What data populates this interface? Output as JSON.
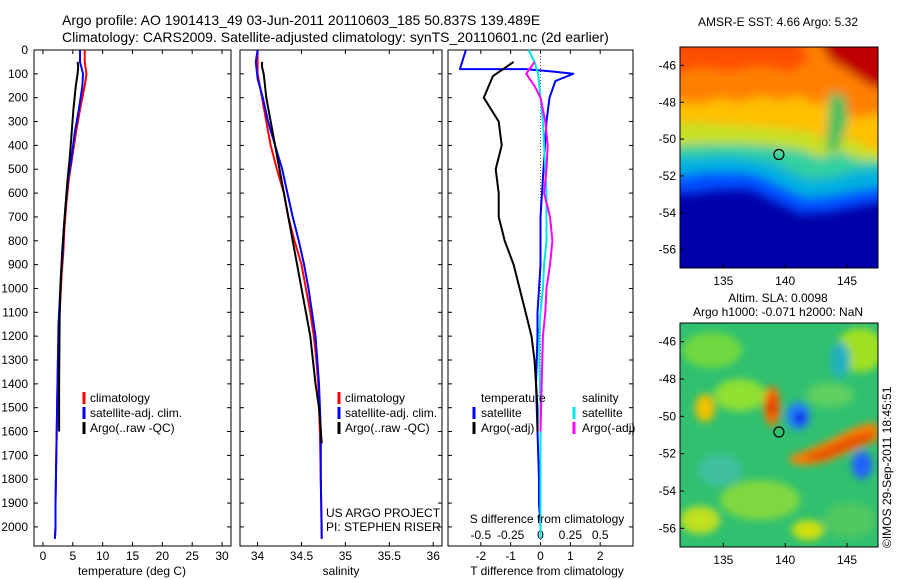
{
  "header": {
    "line1": "Argo profile: AO 1901413_49 03-Jun-2011 20110603_185 50.837S 139.489E",
    "line2": "Climatology: CARS2009. Satellite-adjusted climatology: synTS_20110601.nc (2d earlier)"
  },
  "colors": {
    "climatology": "#ff0000",
    "satellite": "#0000ff",
    "argo": "#000000",
    "sat_salinity_diff": "#00e5e5",
    "argo_salinity_diff": "#ff00ff"
  },
  "depth_axis": {
    "ticks": [
      0,
      100,
      200,
      300,
      400,
      500,
      600,
      700,
      800,
      900,
      1000,
      1100,
      1200,
      1300,
      1400,
      1500,
      1600,
      1700,
      1800,
      1900,
      2000
    ],
    "range": [
      0,
      2080
    ],
    "inverted": true
  },
  "chart_data": [
    {
      "id": "temperature",
      "type": "line",
      "xlabel": "temperature (deg C)",
      "ylabel": "",
      "xlim": [
        -1.5,
        31.5
      ],
      "ylim": [
        2080,
        0
      ],
      "xticks": [
        0,
        5,
        10,
        15,
        20,
        25,
        30
      ],
      "xtick_labels": [
        "0",
        "5",
        "10",
        "15",
        "20",
        "25",
        "30"
      ],
      "legend_position": "lower-middle",
      "series": [
        {
          "name": "climatology",
          "color": "#ff0000",
          "x": [
            7.0,
            7.0,
            7.3,
            7.0,
            6.2,
            5.5,
            4.9,
            4.3,
            3.9,
            3.6,
            3.4,
            3.1,
            2.9,
            2.7,
            2.5,
            2.4,
            2.3,
            2.2,
            2.1,
            2.1,
            2.0
          ],
          "y": [
            0,
            50,
            100,
            150,
            250,
            350,
            450,
            550,
            650,
            750,
            850,
            950,
            1050,
            1150,
            1300,
            1450,
            1600,
            1750,
            1900,
            2000,
            2050
          ]
        },
        {
          "name": "satellite-adj. clim.",
          "color": "#0000ff",
          "x": [
            6.2,
            6.2,
            6.7,
            6.6,
            6.0,
            5.3,
            4.8,
            4.2,
            3.8,
            3.5,
            3.3,
            3.0,
            2.8,
            2.6,
            2.5,
            2.4,
            2.3,
            2.2,
            2.1,
            2.1,
            2.0
          ],
          "y": [
            0,
            50,
            100,
            150,
            250,
            350,
            450,
            550,
            650,
            750,
            850,
            950,
            1050,
            1150,
            1300,
            1450,
            1600,
            1750,
            1900,
            2000,
            2050
          ]
        },
        {
          "name": "Argo(..raw -QC)",
          "color": "#000000",
          "x": [
            5.8,
            5.9,
            5.8,
            5.5,
            5.1,
            4.8,
            4.5,
            4.1,
            3.8,
            3.5,
            3.2,
            3.0,
            2.8,
            2.7,
            2.7
          ],
          "y": [
            50,
            70,
            100,
            150,
            250,
            350,
            450,
            550,
            650,
            750,
            850,
            950,
            1100,
            1400,
            1600
          ]
        }
      ]
    },
    {
      "id": "salinity",
      "type": "line",
      "xlabel": "salinity",
      "ylabel": "",
      "xlim": [
        33.8,
        36.1
      ],
      "ylim": [
        2080,
        0
      ],
      "xticks": [
        34,
        34.5,
        35,
        35.5,
        36
      ],
      "xtick_labels": [
        "34",
        "34.5",
        "35",
        "35.5",
        "36"
      ],
      "legend_position": "lower-middle",
      "annotation": [
        "US ARGO PROJECT",
        "PI: STEPHEN RISER"
      ],
      "series": [
        {
          "name": "climatology",
          "color": "#ff0000",
          "x": [
            34.0,
            34.0,
            34.0,
            34.05,
            34.1,
            34.15,
            34.22,
            34.3,
            34.35,
            34.42,
            34.5,
            34.55,
            34.6,
            34.64,
            34.67,
            34.69,
            34.7,
            34.71,
            34.72,
            34.73,
            34.73
          ],
          "y": [
            0,
            50,
            100,
            200,
            300,
            400,
            500,
            600,
            700,
            800,
            900,
            1000,
            1100,
            1200,
            1300,
            1400,
            1500,
            1600,
            1800,
            2000,
            2050
          ]
        },
        {
          "name": "satellite-adj. clim.",
          "color": "#0000ff",
          "x": [
            34.0,
            33.98,
            34.0,
            34.06,
            34.12,
            34.2,
            34.28,
            34.34,
            34.4,
            34.47,
            34.53,
            34.58,
            34.62,
            34.66,
            34.68,
            34.7,
            34.71,
            34.72,
            34.72,
            34.73
          ],
          "y": [
            0,
            50,
            120,
            200,
            300,
            400,
            500,
            600,
            700,
            800,
            900,
            1000,
            1100,
            1200,
            1300,
            1400,
            1500,
            1600,
            1800,
            2050
          ]
        },
        {
          "name": "Argo(..raw -QC)",
          "color": "#000000",
          "x": [
            34.05,
            34.05,
            34.07,
            34.1,
            34.15,
            34.2,
            34.25,
            34.3,
            34.35,
            34.4,
            34.45,
            34.5,
            34.55,
            34.6,
            34.63,
            34.66,
            34.7,
            34.72,
            34.73
          ],
          "y": [
            50,
            70,
            100,
            200,
            300,
            400,
            500,
            600,
            700,
            800,
            900,
            1000,
            1100,
            1200,
            1300,
            1400,
            1500,
            1600,
            1650
          ]
        }
      ]
    },
    {
      "id": "differences",
      "type": "line",
      "xlabel": "T difference from climatology",
      "xlabel_top": "S difference from climatology",
      "ylabel": "",
      "xlim": [
        -3.1,
        3.1
      ],
      "ylim": [
        2080,
        0
      ],
      "xticks": [
        -2,
        -1,
        0,
        1,
        2
      ],
      "xtick_labels": [
        "-2",
        "-1",
        "0",
        "1",
        "2"
      ],
      "s_ticks": [
        -0.5,
        -0.25,
        0,
        0.25,
        0.5
      ],
      "s_tick_labels": [
        "-0.5",
        "-0.25",
        "0",
        "0.25",
        "0.5"
      ],
      "zero_line": true,
      "legend_titles": [
        "temperature",
        "salinity"
      ],
      "legend_position": "lower-middle",
      "series": [
        {
          "name": "satellite",
          "group": "temperature",
          "color": "#0000ff",
          "x": [
            -2.5,
            -2.7,
            -0.5,
            0.4,
            1.1,
            0.5,
            0.3,
            0.2,
            0.1,
            0.0,
            0.0,
            -0.05,
            -0.1,
            -0.1,
            -0.15,
            -0.1,
            -0.05,
            -0.05,
            0.0,
            0.0
          ],
          "y": [
            0,
            80,
            80,
            90,
            100,
            130,
            200,
            300,
            500,
            700,
            900,
            1000,
            1100,
            1200,
            1400,
            1600,
            1800,
            1900,
            2000,
            2050
          ]
        },
        {
          "name": "Argo(-adj)",
          "group": "temperature",
          "color": "#000000",
          "x": [
            -0.9,
            -1.6,
            -1.9,
            -1.4,
            -1.3,
            -1.5,
            -1.4,
            -1.4,
            -1.2,
            -0.9,
            -0.7,
            -0.5,
            -0.3,
            -0.2,
            -0.1,
            -0.1
          ],
          "y": [
            50,
            110,
            200,
            300,
            400,
            500,
            600,
            700,
            800,
            900,
            1000,
            1100,
            1200,
            1300,
            1500,
            1600
          ]
        },
        {
          "name": "satellite",
          "group": "salinity",
          "color": "#00e5e5",
          "x": [
            -0.1,
            -0.05,
            -0.02,
            0.0,
            0.02,
            0.04,
            0.05,
            0.05,
            0.05,
            0.03,
            0.02,
            0.0,
            -0.01,
            -0.01,
            0.0,
            0.0,
            0.0,
            0.0
          ],
          "y": [
            0,
            50,
            100,
            200,
            300,
            500,
            600,
            700,
            800,
            900,
            1000,
            1100,
            1200,
            1300,
            1500,
            1800,
            2000,
            2050
          ]
        },
        {
          "name": "Argo(-adj)",
          "group": "salinity",
          "color": "#ff00ff",
          "x": [
            -0.05,
            -0.12,
            -0.05,
            0.0,
            0.04,
            0.06,
            0.05,
            0.03,
            0.08,
            0.1,
            0.08,
            0.05,
            0.04,
            0.02,
            0.01,
            0.0
          ],
          "y": [
            50,
            100,
            150,
            200,
            300,
            400,
            500,
            600,
            700,
            800,
            900,
            1000,
            1100,
            1200,
            1400,
            1600
          ]
        }
      ]
    },
    {
      "id": "sst_map",
      "type": "heatmap",
      "title": "AMSR-E SST: 4.66  Argo: 5.32",
      "xlim": [
        131.5,
        147.5
      ],
      "ylim": [
        -57,
        -45
      ],
      "xticks": [
        135,
        140,
        145
      ],
      "yticks": [
        -46,
        -48,
        -50,
        -52,
        -54,
        -56
      ],
      "xtick_labels": [
        "135",
        "140",
        "145"
      ],
      "ytick_labels": [
        "-46",
        "-48",
        "-50",
        "-52",
        "-54",
        "-56"
      ],
      "marker": {
        "lon": 139.489,
        "lat": -50.837
      },
      "colormap": "jet"
    },
    {
      "id": "sla_map",
      "type": "heatmap",
      "title": "Altim. SLA: 0.0098",
      "subtitle": "Argo h1000: -0.071  h2000: NaN",
      "xlim": [
        131.5,
        147.5
      ],
      "ylim": [
        -57,
        -45
      ],
      "xticks": [
        135,
        140,
        145
      ],
      "yticks": [
        -46,
        -48,
        -50,
        -52,
        -54,
        -56
      ],
      "xtick_labels": [
        "135",
        "140",
        "145"
      ],
      "ytick_labels": [
        "-46",
        "-48",
        "-50",
        "-52",
        "-54",
        "-56"
      ],
      "marker": {
        "lon": 139.489,
        "lat": -50.837
      },
      "colormap": "jet"
    }
  ],
  "legend_labels": {
    "clim": "climatology",
    "sat": "satellite-adj. clim.",
    "argo": "Argo(..raw -QC)",
    "diff_temp_title": "temperature",
    "diff_sal_title": "salinity",
    "diff_sat": "satellite",
    "diff_argo": "Argo(-adj)"
  },
  "credit": "©IMOS 29-Sep-2011 18:45:51"
}
